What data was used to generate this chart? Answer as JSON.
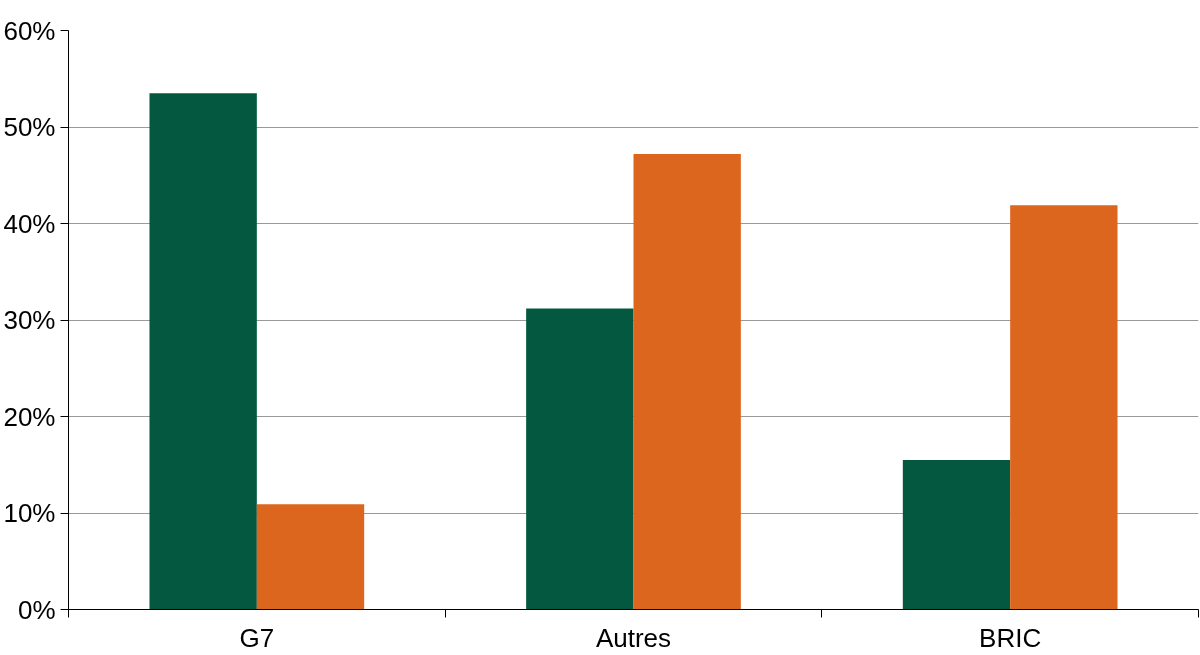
{
  "chart_data": {
    "type": "bar",
    "categories": [
      "G7",
      "Autres",
      "BRIC"
    ],
    "series": [
      {
        "color": "#03583f",
        "values": [
          53.5,
          31.2,
          15.5
        ]
      },
      {
        "color": "#dd661e",
        "values": [
          10.9,
          47.2,
          41.9
        ]
      }
    ],
    "ylim": [
      0,
      60
    ],
    "yticks": [
      {
        "value": 0,
        "label": "0%"
      },
      {
        "value": 10,
        "label": "10%"
      },
      {
        "value": 20,
        "label": "20%"
      },
      {
        "value": 30,
        "label": "30%"
      },
      {
        "value": 40,
        "label": "40%"
      },
      {
        "value": 50,
        "label": "50%"
      },
      {
        "value": 60,
        "label": "60%"
      }
    ],
    "grid": "y"
  }
}
